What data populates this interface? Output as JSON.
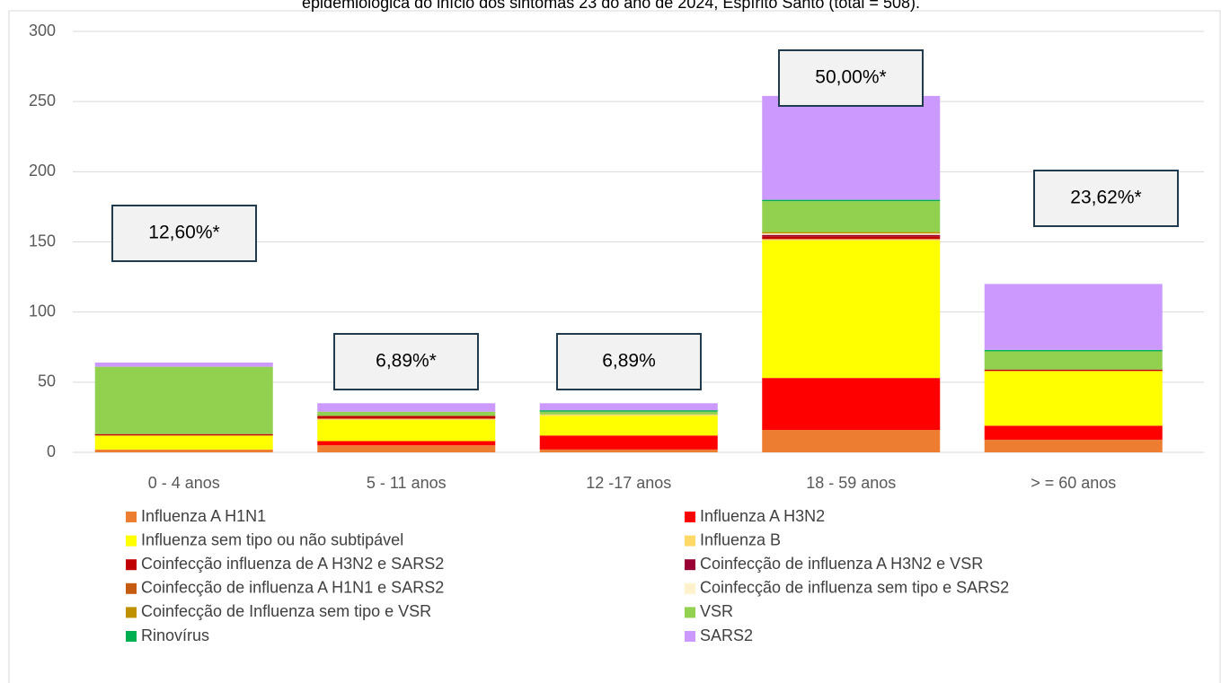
{
  "chart_data": {
    "type": "stacked_bar",
    "title": "epidemiológica do início dos sintomas 23 do ano de 2024, Espírito Santo (total = 508).",
    "categories": [
      "0 - 4  anos",
      "5 - 11 anos",
      "12 -17 anos",
      "18 - 59 anos",
      "> = 60 anos"
    ],
    "series": [
      {
        "name": "Influenza A H1N1",
        "color": "#ED7D31",
        "values": [
          2,
          5,
          2,
          16,
          9
        ]
      },
      {
        "name": "Influenza A H3N2",
        "color": "#FF0000",
        "values": [
          0,
          3,
          10,
          37,
          10
        ]
      },
      {
        "name": "Influenza sem tipo ou não subtipável",
        "color": "#FFFF00",
        "values": [
          10,
          15,
          14,
          98,
          39
        ]
      },
      {
        "name": "Influenza B",
        "color": "#FFD966",
        "values": [
          0,
          1,
          1,
          1,
          0
        ]
      },
      {
        "name": "Coinfecção influenza de A H3N2 e SARS2",
        "color": "#C00000",
        "values": [
          1,
          2,
          0,
          2,
          1
        ]
      },
      {
        "name": "Coinfecção de influenza A H3N2 e VSR",
        "color": "#990033",
        "values": [
          0,
          0,
          0,
          1,
          0
        ]
      },
      {
        "name": "Coinfecção de influenza A  H1N1  e SARS2",
        "color": "#C55A11",
        "values": [
          0,
          0,
          0,
          0,
          0
        ]
      },
      {
        "name": "Coinfecção de influenza sem tipo  e SARS2",
        "color": "#FFF2CC",
        "values": [
          0,
          0,
          0,
          1,
          0
        ]
      },
      {
        "name": "Coinfecção de Influenza  sem tipo e VSR",
        "color": "#BF9000",
        "values": [
          0,
          0,
          0,
          1,
          0
        ]
      },
      {
        "name": "VSR",
        "color": "#92D050",
        "values": [
          48,
          3,
          2,
          22,
          13
        ]
      },
      {
        "name": "Rinovírus",
        "color": "#00B050",
        "values": [
          0,
          0,
          1,
          1,
          1
        ]
      },
      {
        "name": "SARS2",
        "color": "#CC99FF",
        "values": [
          3,
          6,
          5,
          74,
          47
        ]
      }
    ],
    "annotations": [
      "12,60%*",
      "6,89%*",
      "6,89%",
      "50,00%*",
      "23,62%*"
    ],
    "ylim": [
      0,
      300
    ],
    "yticks": [
      0,
      50,
      100,
      150,
      200,
      250,
      300
    ],
    "grid": true,
    "legend": "bottom"
  }
}
